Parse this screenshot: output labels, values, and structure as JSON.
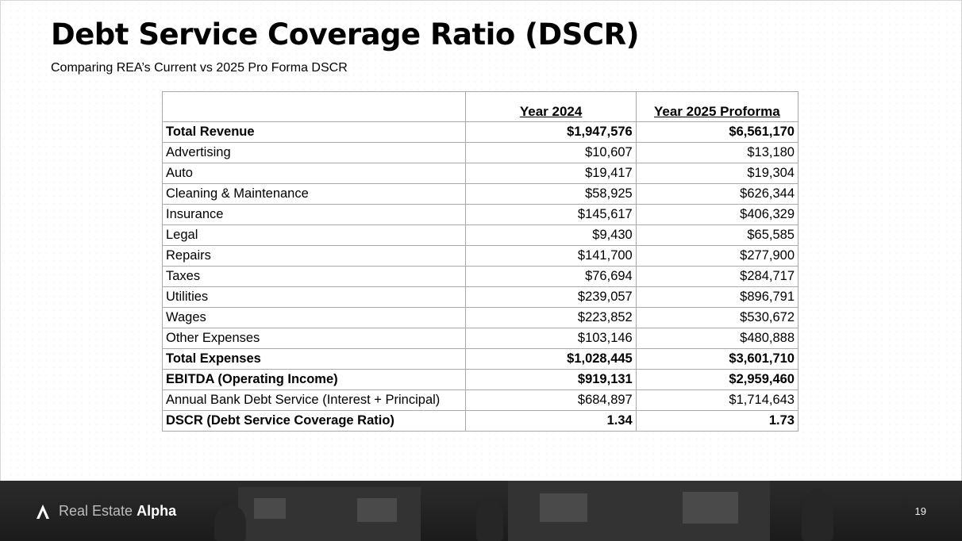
{
  "slide": {
    "title": "Debt Service Coverage Ratio (DSCR)",
    "subtitle": "Comparing REA’s Current vs 2025 Pro Forma DSCR",
    "page_number": "19"
  },
  "table": {
    "headers": [
      "",
      "Year 2024",
      "Year 2025 Proforma"
    ],
    "rows": [
      {
        "label": "Total Revenue",
        "y2024": "$1,947,576",
        "y2025": "$6,561,170",
        "bold": true
      },
      {
        "label": "Advertising",
        "y2024": "$10,607",
        "y2025": "$13,180",
        "bold": false
      },
      {
        "label": "Auto",
        "y2024": "$19,417",
        "y2025": "$19,304",
        "bold": false
      },
      {
        "label": "Cleaning & Maintenance",
        "y2024": "$58,925",
        "y2025": "$626,344",
        "bold": false
      },
      {
        "label": "Insurance",
        "y2024": "$145,617",
        "y2025": "$406,329",
        "bold": false
      },
      {
        "label": "Legal",
        "y2024": "$9,430",
        "y2025": "$65,585",
        "bold": false
      },
      {
        "label": "Repairs",
        "y2024": "$141,700",
        "y2025": "$277,900",
        "bold": false
      },
      {
        "label": "Taxes",
        "y2024": "$76,694",
        "y2025": "$284,717",
        "bold": false
      },
      {
        "label": "Utilities",
        "y2024": "$239,057",
        "y2025": "$896,791",
        "bold": false
      },
      {
        "label": "Wages",
        "y2024": "$223,852",
        "y2025": "$530,672",
        "bold": false
      },
      {
        "label": "Other Expenses",
        "y2024": "$103,146",
        "y2025": "$480,888",
        "bold": false
      },
      {
        "label": "Total Expenses",
        "y2024": "$1,028,445",
        "y2025": "$3,601,710",
        "bold": true
      },
      {
        "label": "EBITDA (Operating Income)",
        "y2024": "$919,131",
        "y2025": "$2,959,460",
        "bold": true
      },
      {
        "label": "Annual Bank Debt Service (Interest + Principal)",
        "y2024": "$684,897",
        "y2025": "$1,714,643",
        "bold": false
      },
      {
        "label": "DSCR (Debt Service Coverage Ratio)",
        "y2024": "1.34",
        "y2025": "1.73",
        "bold": true
      }
    ]
  },
  "footer": {
    "brand_light": "Real Estate",
    "brand_bold": "Alpha",
    "logo_icon": "alpha-triangle-icon"
  },
  "colors": {
    "footer_bg": "#1f1f1f",
    "grid_border": "#a9a9a9"
  }
}
